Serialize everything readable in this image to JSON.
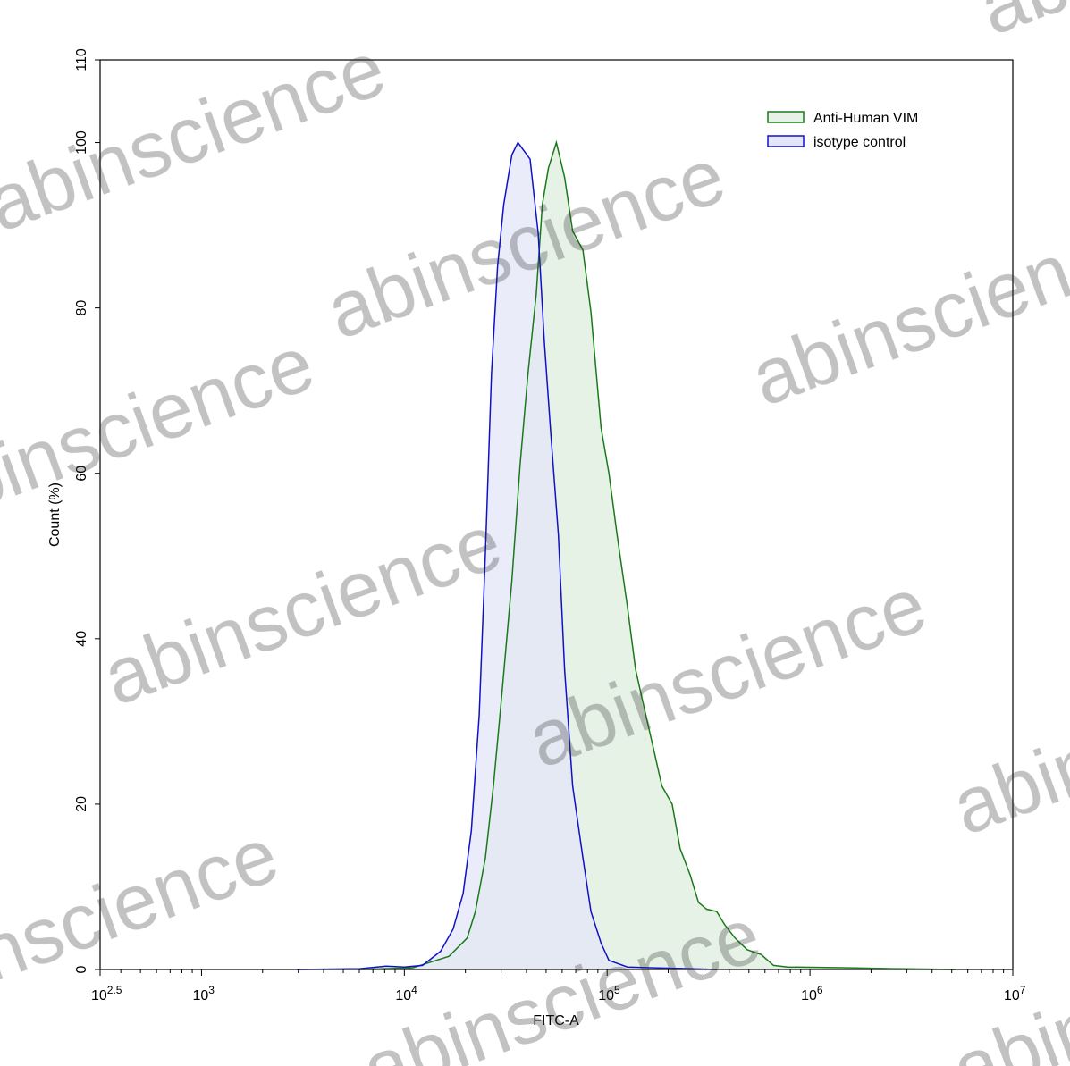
{
  "chart_data": {
    "type": "area",
    "title": "",
    "xlabel": "FITC-A",
    "ylabel": "Count  (%)",
    "x_scale": "log",
    "xlim": [
      316.2,
      10000000
    ],
    "ylim": [
      0,
      110
    ],
    "x_ticks": [
      {
        "base": "10",
        "exp": "2.5",
        "value": 316.2
      },
      {
        "base": "10",
        "exp": "3",
        "value": 1000
      },
      {
        "base": "10",
        "exp": "4",
        "value": 10000
      },
      {
        "base": "10",
        "exp": "5",
        "value": 100000
      },
      {
        "base": "10",
        "exp": "6",
        "value": 1000000
      },
      {
        "base": "10",
        "exp": "7",
        "value": 10000000
      }
    ],
    "y_ticks": [
      "0",
      "20",
      "40",
      "60",
      "80",
      "100",
      "110"
    ],
    "grid": false,
    "legend_placement": "top-right",
    "series": [
      {
        "name": "Anti-Human VIM",
        "stroke": "#1a7a1a",
        "fill": "#e6f2e6",
        "x": [
          6030,
          11000,
          13500,
          16600,
          20400,
          22400,
          25100,
          27500,
          30200,
          33900,
          37200,
          40700,
          44700,
          47900,
          51300,
          56200,
          61700,
          67600,
          75900,
          83200,
          93300,
          102000,
          112000,
          126000,
          138000,
          155000,
          170000,
          186000,
          209000,
          229000,
          257000,
          282000,
          309000,
          347000,
          380000,
          427000,
          490000,
          575000,
          661000,
          776000,
          1580000,
          2630000,
          5250000
        ],
        "y": [
          0,
          0.2,
          0.9,
          1.6,
          3.8,
          7,
          13.5,
          22.2,
          33,
          47,
          61,
          72,
          81.7,
          92.5,
          96.9,
          100,
          95.8,
          89.3,
          87,
          79.5,
          65.5,
          60,
          52.5,
          43.8,
          36.3,
          30.8,
          26.5,
          22.2,
          20,
          14.6,
          11.4,
          8.1,
          7.3,
          7,
          5.4,
          3.8,
          2.4,
          1.8,
          0.5,
          0.3,
          0.2,
          0.1,
          0
        ]
      },
      {
        "name": "isotype control",
        "stroke": "#1010c8",
        "fill": "#e4e6f8",
        "x": [
          2950,
          6030,
          8130,
          10000,
          12300,
          15100,
          17400,
          19500,
          21400,
          23400,
          25100,
          26900,
          28800,
          30900,
          33900,
          36300,
          38900,
          41700,
          45700,
          49000,
          52500,
          57500,
          61700,
          67600,
          75900,
          83200,
          93300,
          102000,
          126000,
          170000,
          257000,
          347000
        ],
        "y": [
          0,
          0.1,
          0.4,
          0.3,
          0.5,
          2.2,
          4.9,
          9.2,
          16.8,
          30.8,
          50.3,
          72,
          85,
          92.5,
          98.5,
          100,
          99,
          98,
          89,
          76,
          65.5,
          52.5,
          36.3,
          22.2,
          13.5,
          7,
          3.2,
          1.1,
          0.3,
          0.2,
          0.1,
          0
        ]
      }
    ]
  },
  "watermark": "abinscience"
}
